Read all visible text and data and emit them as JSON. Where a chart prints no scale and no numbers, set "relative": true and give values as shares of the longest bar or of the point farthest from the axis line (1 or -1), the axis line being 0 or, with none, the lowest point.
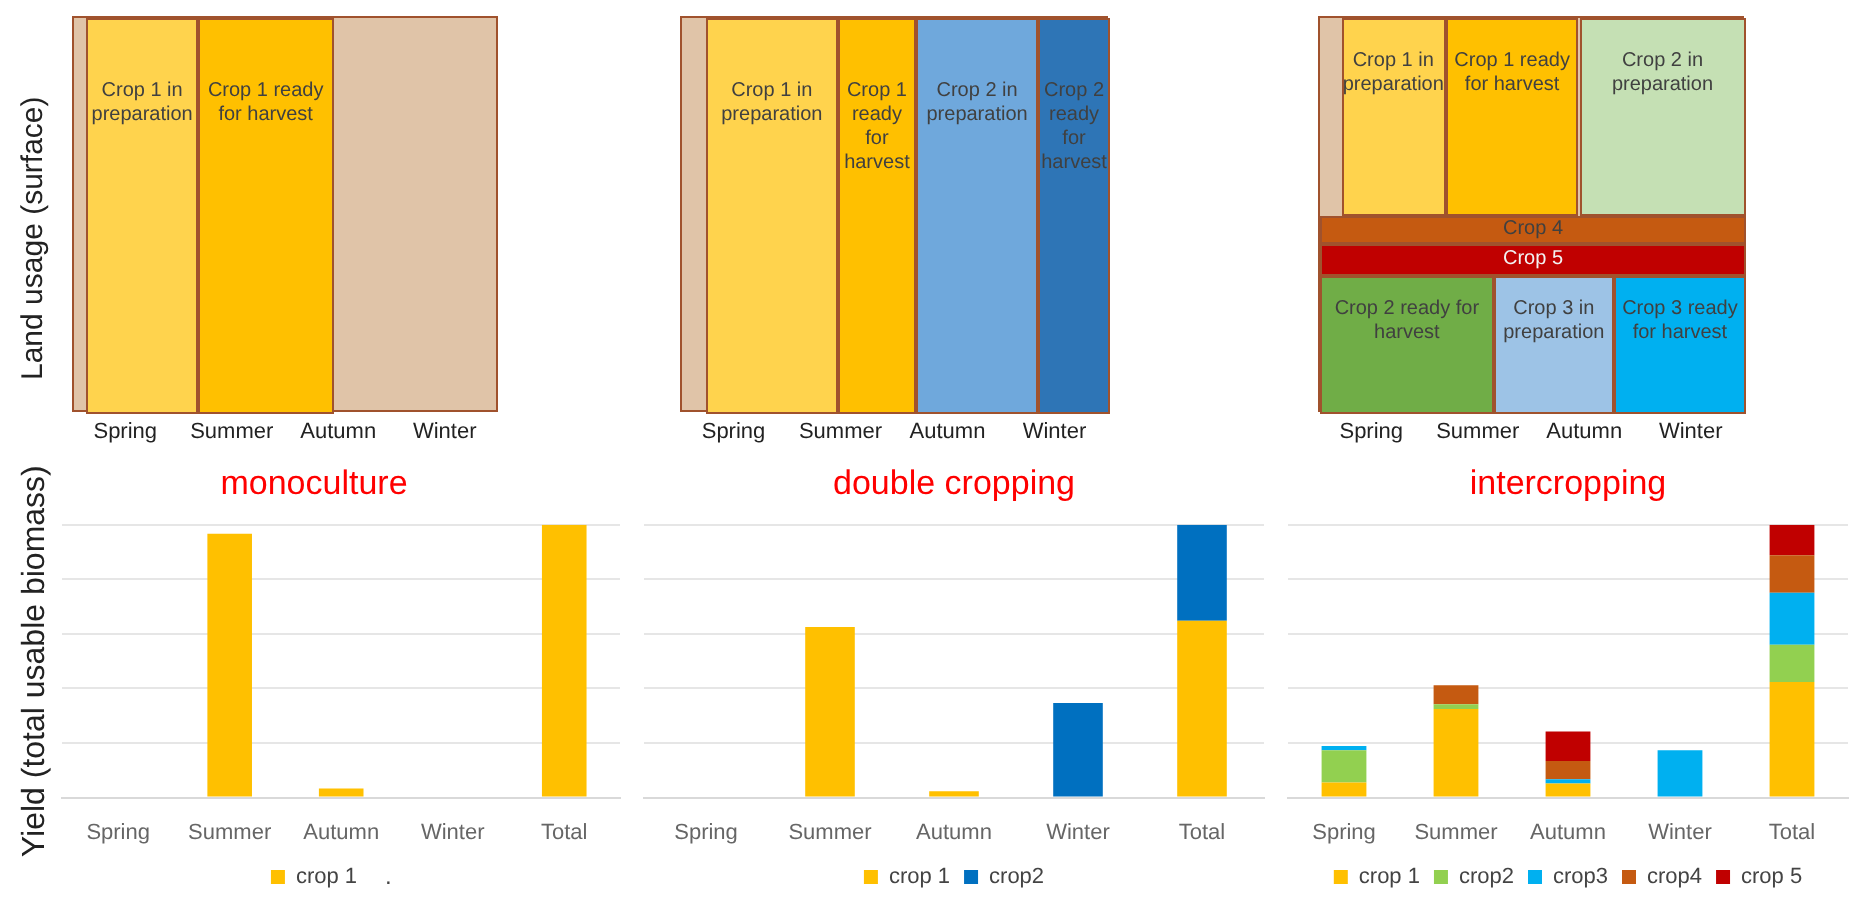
{
  "chart_data": [
    {
      "type": "other",
      "ylabel": "Land usage (surface)",
      "categories": [
        "Spring",
        "Summer",
        "Autumn",
        "Winter"
      ],
      "annotations": [
        "Crop 1 in preparation",
        "Crop 1 ready for harvest"
      ],
      "colors": [
        "#ffd34d",
        "#ffc000"
      ]
    },
    {
      "type": "other",
      "categories": [
        "Spring",
        "Summer",
        "Autumn",
        "Winter"
      ],
      "annotations": [
        "Crop 1 in preparation",
        "Crop 1 ready for harvest",
        "Crop 2 in preparation",
        "Crop 2 ready for harvest"
      ],
      "colors": [
        "#ffd34d",
        "#ffc000",
        "#6fa8dc",
        "#2e75b6"
      ],
      "title": null
    },
    {
      "type": "other",
      "categories": [
        "Spring",
        "Summer",
        "Autumn",
        "Winter"
      ],
      "annotations": [
        "Crop 1 in preparation",
        "Crop 1 ready for harvest",
        "Crop 2 in preparation",
        "Crop 4",
        "Crop 5",
        "Crop 2 ready for harvest",
        "Crop 3 in preparation",
        "Crop 3 ready for harvest"
      ],
      "colors": [
        "#ffd34d",
        "#ffc000",
        "#c5e0b4",
        "#c55a11",
        "#c00000",
        "#70ad47",
        "#9dc3e6",
        "#00b0f0"
      ]
    },
    {
      "type": "bar",
      "title": "monoculture",
      "ylabel": "Yield (total usable biomass)",
      "relative": true,
      "stacked": true,
      "grid": "y",
      "legend": "bottom",
      "categories": [
        "Spring",
        "Summer",
        "Autumn",
        "Winter",
        "Total"
      ],
      "annotations": [
        "."
      ],
      "series": [
        {
          "name": "crop 1",
          "color": "#ffc000",
          "values": [
            null,
            0.967,
            0.033,
            null,
            1
          ]
        }
      ]
    },
    {
      "type": "bar",
      "title": "double cropping",
      "relative": true,
      "stacked": true,
      "grid": "y",
      "legend": "bottom",
      "categories": [
        "Spring",
        "Summer",
        "Autumn",
        "Winter",
        "Total"
      ],
      "series": [
        {
          "name": "crop 1",
          "color": "#ffc000",
          "values": [
            null,
            0.625,
            0.023,
            null,
            0.648
          ]
        },
        {
          "name": "crop2",
          "color": "#0070c0",
          "values": [
            null,
            null,
            null,
            0.347,
            0.352
          ]
        }
      ]
    },
    {
      "type": "bar",
      "title": "intercropping",
      "relative": true,
      "stacked": true,
      "grid": "y",
      "legend": "bottom",
      "categories": [
        "Spring",
        "Summer",
        "Autumn",
        "Winter",
        "Total"
      ],
      "series": [
        {
          "name": "crop 1",
          "color": "#ffc000",
          "values": [
            0.055,
            0.325,
            0.052,
            null,
            0.424
          ]
        },
        {
          "name": "crop2",
          "color": "#92d050",
          "values": [
            0.119,
            0.017,
            null,
            null,
            0.136
          ]
        },
        {
          "name": "crop3",
          "color": "#00b0f0",
          "values": [
            0.015,
            null,
            0.015,
            0.174,
            0.191
          ]
        },
        {
          "name": "crop4",
          "color": "#c55a11",
          "values": [
            null,
            0.07,
            0.067,
            null,
            0.137
          ]
        },
        {
          "name": "crop 5",
          "color": "#c00000",
          "values": [
            null,
            null,
            0.108,
            null,
            0.112
          ]
        }
      ]
    }
  ]
}
